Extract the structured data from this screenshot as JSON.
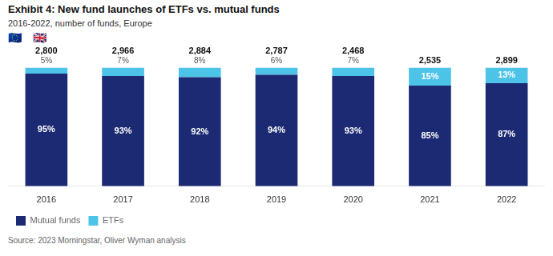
{
  "chart_data": {
    "type": "bar",
    "title": "Exhibit 4: New fund launches of ETFs vs. mutual funds",
    "subtitle": "2016-2022, number of funds, Europe",
    "source": "Source: 2023 Morningstar, Oliver Wyman analysis",
    "annotations": [
      "🇪🇺",
      "🇬🇧"
    ],
    "categories": [
      "2016",
      "2017",
      "2018",
      "2019",
      "2020",
      "2021",
      "2022"
    ],
    "series": [
      {
        "name": "Mutual funds",
        "color": "#1b2a72",
        "values": [
          95,
          93,
          92,
          94,
          93,
          85,
          87
        ],
        "value_labels": [
          "95%",
          "93%",
          "92%",
          "94%",
          "93%",
          "85%",
          "87%"
        ]
      },
      {
        "name": "ETFs",
        "color": "#4dc3e8",
        "values": [
          5,
          7,
          8,
          6,
          7,
          15,
          13
        ],
        "value_labels": [
          "5%",
          "7%",
          "8%",
          "6%",
          "7%",
          "15%",
          "13%"
        ]
      }
    ],
    "totals": [
      2800,
      2966,
      2884,
      2787,
      2468,
      2535,
      2899
    ],
    "total_labels": [
      "2,800",
      "2,966",
      "2,884",
      "2,787",
      "2,468",
      "2,535",
      "2,899"
    ],
    "ylim": [
      0,
      118
    ],
    "stacked": true,
    "data_labels": true,
    "grid": false,
    "legend": "lower left",
    "tick_labels": "x"
  }
}
